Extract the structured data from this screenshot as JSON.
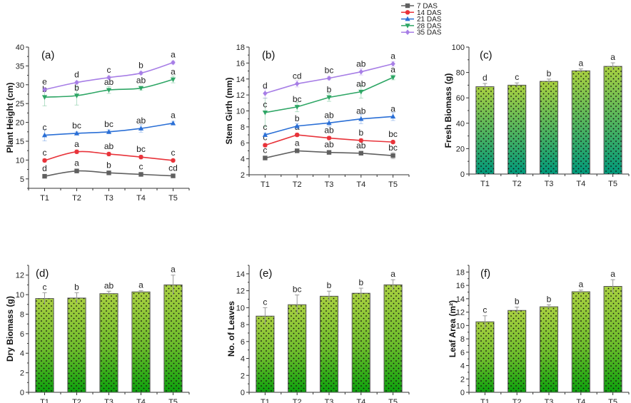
{
  "legend": {
    "entries": [
      {
        "label": "7 DAS",
        "color": "#606060",
        "marker": "square"
      },
      {
        "label": "14 DAS",
        "color": "#e8333a",
        "marker": "circle"
      },
      {
        "label": "21 DAS",
        "color": "#2a6fd6",
        "marker": "triangle-up"
      },
      {
        "label": "28 DAS",
        "color": "#2ea665",
        "marker": "triangle-down"
      },
      {
        "label": "35 DAS",
        "color": "#a77ee6",
        "marker": "diamond"
      }
    ]
  },
  "chart_data": [
    {
      "type": "line",
      "panel": "(a)",
      "title": "",
      "ylabel": "Plant Height (cm)",
      "xlabel": "",
      "categories": [
        "T1",
        "T2",
        "T3",
        "T4",
        "T5"
      ],
      "ylim": [
        2.5,
        40
      ],
      "yticks": [
        5,
        10,
        15,
        20,
        25,
        30,
        35,
        40
      ],
      "series": [
        {
          "name": "7 DAS",
          "values": [
            5.7,
            7.1,
            6.6,
            6.2,
            5.8
          ],
          "errors": [
            0.3,
            0.3,
            0.3,
            0.3,
            0.3
          ],
          "letters": [
            "d",
            "a",
            "b",
            "c",
            "cd"
          ]
        },
        {
          "name": "14 DAS",
          "values": [
            9.9,
            12.2,
            11.6,
            10.8,
            9.9
          ],
          "errors": [
            0.4,
            0.5,
            0.5,
            0.5,
            0.3
          ],
          "letters": [
            "c",
            "a",
            "ab",
            "bc",
            "c"
          ]
        },
        {
          "name": "21 DAS",
          "values": [
            16.6,
            17.1,
            17.5,
            18.4,
            19.8
          ],
          "errors": [
            1.5,
            0.4,
            0.5,
            1.0,
            0.5
          ],
          "letters": [
            "c",
            "bc",
            "bc",
            "ab",
            "a"
          ]
        },
        {
          "name": "28 DAS",
          "values": [
            26.7,
            27.1,
            28.6,
            29.1,
            31.4
          ],
          "errors": [
            2.3,
            2.5,
            0.9,
            0.5,
            0.9
          ],
          "letters": [
            "b",
            "b",
            "ab",
            "ab",
            "a"
          ]
        },
        {
          "name": "35 DAS",
          "values": [
            28.7,
            30.6,
            31.9,
            33.1,
            35.9
          ],
          "errors": [
            0.4,
            0.4,
            0.4,
            0.4,
            0.4
          ],
          "letters": [
            "e",
            "d",
            "c",
            "b",
            "a"
          ]
        }
      ],
      "legend_position": "top-right (shared)"
    },
    {
      "type": "line",
      "panel": "(b)",
      "title": "",
      "ylabel": "Stem Girth (mm)",
      "xlabel": "",
      "categories": [
        "T1",
        "T2",
        "T3",
        "T4",
        "T5"
      ],
      "ylim": [
        2,
        18
      ],
      "yticks": [
        2,
        4,
        6,
        8,
        10,
        12,
        14,
        16,
        18
      ],
      "series": [
        {
          "name": "7 DAS",
          "values": [
            4.1,
            5.0,
            4.8,
            4.7,
            4.4
          ],
          "errors": [
            0.1,
            0.2,
            0.2,
            0.2,
            0.4
          ],
          "letters": [
            "c",
            "a",
            "ab",
            "ab",
            "bc"
          ]
        },
        {
          "name": "14 DAS",
          "values": [
            5.7,
            7.0,
            6.6,
            6.3,
            6.1
          ],
          "errors": [
            0.2,
            0.2,
            0.2,
            0.2,
            0.2
          ],
          "letters": [
            "c",
            "a",
            "ab",
            "b",
            "bc"
          ]
        },
        {
          "name": "21 DAS",
          "values": [
            7.0,
            8.1,
            8.5,
            9.0,
            9.3
          ],
          "errors": [
            0.2,
            0.3,
            0.4,
            0.6,
            0.5
          ],
          "letters": [
            "c",
            "b",
            "ab",
            "ab",
            "a"
          ]
        },
        {
          "name": "28 DAS",
          "values": [
            9.8,
            10.5,
            11.7,
            12.4,
            14.2
          ],
          "errors": [
            1.8,
            0.6,
            0.5,
            0.8,
            0.3
          ],
          "letters": [
            "c",
            "bc",
            "b",
            "ab",
            "a"
          ]
        },
        {
          "name": "35 DAS",
          "values": [
            12.2,
            13.4,
            14.1,
            14.9,
            15.9
          ],
          "errors": [
            0.6,
            0.4,
            0.2,
            0.4,
            0.3
          ],
          "letters": [
            "d",
            "cd",
            "bc",
            "ab",
            "a"
          ]
        }
      ],
      "legend_position": "top-right (shared)"
    },
    {
      "type": "bar",
      "panel": "(c)",
      "title": "",
      "ylabel": "Fresh Biomass (g)",
      "xlabel": "",
      "categories": [
        "T1",
        "T2",
        "T3",
        "T4",
        "T5"
      ],
      "values": [
        68.8,
        70.0,
        73.0,
        81.3,
        84.8
      ],
      "errors": [
        2.5,
        1.8,
        1.8,
        1.5,
        2.8
      ],
      "letters": [
        "d",
        "c",
        "b",
        "a",
        "a"
      ],
      "ylim": [
        0,
        100
      ],
      "yticks": [
        0,
        20,
        40,
        60,
        80,
        100
      ],
      "gradient": [
        "#a8d040",
        "#00997a"
      ]
    },
    {
      "type": "bar",
      "panel": "(d)",
      "title": "",
      "ylabel": "Dry Biomass (g)",
      "xlabel": "",
      "categories": [
        "T1",
        "T2",
        "T3",
        "T4",
        "T5"
      ],
      "values": [
        9.6,
        9.65,
        10.1,
        10.28,
        11.0
      ],
      "errors": [
        0.6,
        0.55,
        0.25,
        0.12,
        1.0
      ],
      "letters": [
        "c",
        "b",
        "ab",
        "a",
        "a"
      ],
      "ylim": [
        0,
        13
      ],
      "yticks": [
        0,
        2,
        4,
        6,
        8,
        10,
        12
      ],
      "gradient": [
        "#a8d040",
        "#0ca00c"
      ]
    },
    {
      "type": "bar",
      "panel": "(e)",
      "title": "",
      "ylabel": "No. of Leaves",
      "xlabel": "",
      "categories": [
        "T1",
        "T2",
        "T3",
        "T4",
        "T5"
      ],
      "values": [
        9.0,
        10.35,
        11.35,
        11.7,
        12.7
      ],
      "errors": [
        1.0,
        1.15,
        0.6,
        0.6,
        0.6
      ],
      "letters": [
        "c",
        "bc",
        "b",
        "b",
        "a"
      ],
      "ylim": [
        0,
        15
      ],
      "yticks": [
        0,
        2,
        4,
        6,
        8,
        10,
        12,
        14
      ],
      "gradient": [
        "#a8d040",
        "#0ca00c"
      ]
    },
    {
      "type": "bar",
      "panel": "(f)",
      "title": "",
      "ylabel": "Leaf Area (m²)",
      "xlabel": "",
      "categories": [
        "T1",
        "T2",
        "T3",
        "T4",
        "T5"
      ],
      "values": [
        10.55,
        12.25,
        12.8,
        15.05,
        15.85
      ],
      "errors": [
        0.9,
        0.5,
        0.3,
        0.25,
        1.0
      ],
      "letters": [
        "c",
        "b",
        "b",
        "a",
        "a"
      ],
      "ylim": [
        0,
        19
      ],
      "yticks": [
        0,
        2,
        4,
        6,
        8,
        10,
        12,
        14,
        16,
        18
      ],
      "gradient": [
        "#a8d040",
        "#0ca00c"
      ]
    }
  ]
}
